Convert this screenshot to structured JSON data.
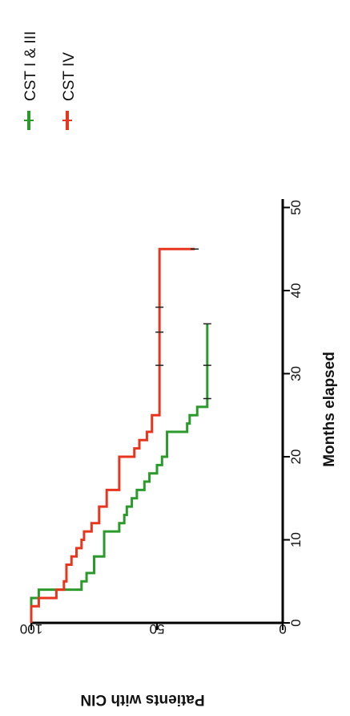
{
  "chart_data": {
    "type": "line",
    "title": "",
    "xlabel": "Months elapsed",
    "ylabel": "Patients with CIN",
    "xlim": [
      0,
      50
    ],
    "ylim": [
      0,
      100
    ],
    "x_ticks": [
      "0",
      "10",
      "20",
      "30",
      "40",
      "50"
    ],
    "y_ticks": [
      "0",
      "50",
      "100"
    ],
    "grid": false,
    "legend_position": "top-right",
    "series": [
      {
        "name": "CST I & III",
        "color": "#2a9a2a",
        "step": true,
        "x": [
          0,
          3,
          4,
          5,
          6,
          8,
          11,
          12,
          13,
          14,
          15,
          16,
          17,
          18,
          19,
          20,
          23,
          24,
          25,
          26,
          36
        ],
        "y": [
          100,
          97,
          80,
          78,
          75,
          71,
          65,
          63,
          62,
          60,
          58,
          55,
          53,
          50,
          48,
          46,
          38,
          37,
          34,
          30,
          30
        ],
        "censored_x": [
          27,
          31,
          36
        ]
      },
      {
        "name": "CST IV",
        "color": "#e8351e",
        "step": true,
        "x": [
          0,
          2,
          3,
          4,
          5,
          7,
          8,
          9,
          10,
          11,
          12,
          14,
          16,
          20,
          21,
          22,
          23,
          25,
          45
        ],
        "y": [
          100,
          97,
          90,
          87,
          86,
          84,
          82,
          80,
          79,
          76,
          73,
          70,
          65,
          59,
          57,
          54,
          52,
          49,
          35
        ],
        "censored_x": [
          31,
          35,
          38,
          45
        ]
      }
    ]
  }
}
